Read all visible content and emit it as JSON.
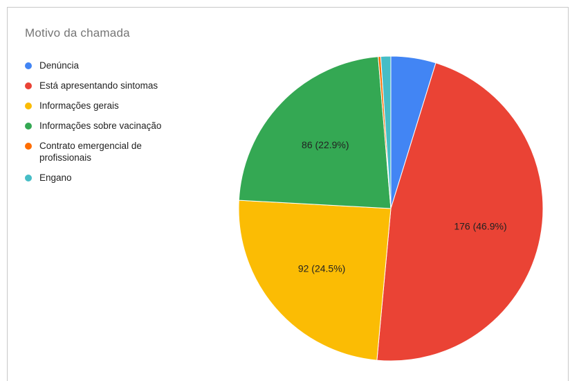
{
  "chart_data": {
    "type": "pie",
    "title": "Motivo da chamada",
    "legend_position": "left",
    "slices": [
      {
        "name": "Denúncia",
        "value": 18,
        "color": "#4285f4",
        "label": ""
      },
      {
        "name": "Está apresentando sintomas",
        "value": 176,
        "color": "#ea4335",
        "label": "176 (46.9%)"
      },
      {
        "name": "Informações gerais",
        "value": 92,
        "color": "#fbbc04",
        "label": "92 (24.5%)"
      },
      {
        "name": "Informações sobre vacinação",
        "value": 86,
        "color": "#34a853",
        "label": "86 (22.9%)"
      },
      {
        "name": "Contrato emergencial de profissionais",
        "value": 1,
        "color": "#ff6d01",
        "label": ""
      },
      {
        "name": "Engano",
        "value": 4,
        "color": "#46bdc6",
        "label": ""
      }
    ]
  }
}
